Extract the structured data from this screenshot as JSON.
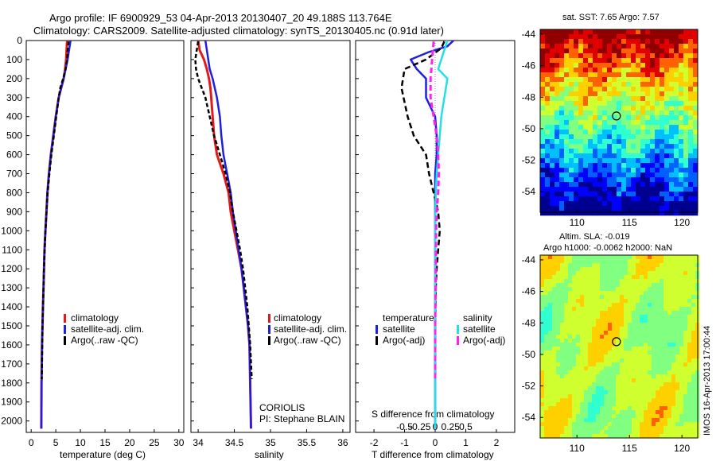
{
  "title_line1": "Argo profile: IF 6900929_53 04-Apr-2013 20130407_20 49.188S 113.764E",
  "title_line2": "Climatology: CARS2009. Satellite-adjusted climatology: synTS_20130405.nc (0.91d later)",
  "colors": {
    "climatology": "#e31a1c",
    "satellite": "#1f1fe0",
    "argo": "#000000",
    "satellite_s": "#22e0e8",
    "argo_s": "#ff22ee"
  },
  "depth_ticks": [
    "0",
    "100",
    "200",
    "300",
    "400",
    "500",
    "600",
    "700",
    "800",
    "900",
    "1000",
    "1100",
    "1200",
    "1300",
    "1400",
    "1500",
    "1600",
    "1700",
    "1800",
    "1900",
    "2000"
  ],
  "chart_data": [
    {
      "type": "line",
      "xlabel": "temperature (deg C)",
      "xlim": [
        -1,
        31
      ],
      "ylim": [
        2060,
        0
      ],
      "x_ticks": [
        "0",
        "5",
        "10",
        "15",
        "20",
        "25",
        "30"
      ],
      "legend": [
        "climatology",
        "satellite-adj. clim.",
        "Argo(..raw -QC)"
      ],
      "series": [
        {
          "name": "climatology",
          "x": [
            7.3,
            7.2,
            7.1,
            6.9,
            6.6,
            6.1,
            5.6,
            5.0,
            4.5,
            4.0,
            3.6,
            3.3,
            3.1,
            2.9,
            2.7,
            2.6,
            2.5,
            2.4,
            2.3,
            2.2,
            2.1,
            2.05
          ],
          "y": [
            0,
            50,
            100,
            150,
            200,
            250,
            300,
            400,
            500,
            600,
            700,
            800,
            900,
            1000,
            1100,
            1200,
            1300,
            1400,
            1500,
            1600,
            1800,
            2040
          ]
        },
        {
          "name": "satellite-adj. clim.",
          "x": [
            8.0,
            7.7,
            7.4,
            7.0,
            6.6,
            6.1,
            5.6,
            5.0,
            4.5,
            4.0,
            3.6,
            3.3,
            3.1,
            2.9,
            2.7,
            2.6,
            2.5,
            2.4,
            2.3,
            2.2,
            2.1,
            2.05
          ],
          "y": [
            0,
            50,
            100,
            150,
            200,
            250,
            300,
            400,
            500,
            600,
            700,
            800,
            900,
            1000,
            1100,
            1200,
            1300,
            1400,
            1500,
            1600,
            1800,
            2040
          ]
        },
        {
          "name": "Argo(..raw -QC)",
          "x": [
            7.6,
            7.4,
            7.3,
            7.0,
            6.5,
            5.9,
            5.6,
            5.1,
            4.6,
            4.1,
            3.7,
            3.35,
            3.1,
            2.9,
            2.75,
            2.6,
            2.5,
            2.4,
            2.3,
            2.25,
            2.15
          ],
          "y": [
            5,
            50,
            100,
            150,
            200,
            250,
            300,
            400,
            500,
            600,
            700,
            800,
            900,
            1000,
            1100,
            1200,
            1300,
            1400,
            1500,
            1600,
            1780
          ]
        }
      ]
    },
    {
      "type": "line",
      "xlabel": "salinity",
      "xlim": [
        33.9,
        36.1
      ],
      "ylim": [
        2060,
        0
      ],
      "x_ticks": [
        "34",
        "34.5",
        "35",
        "35.5",
        "36"
      ],
      "legend": [
        "climatology",
        "satellite-adj. clim.",
        "Argo(..raw -QC)"
      ],
      "annotations": [
        "CORIOLIS",
        "PI: Stephane BLAIN"
      ],
      "series": [
        {
          "name": "climatology",
          "x": [
            34.0,
            34.02,
            34.08,
            34.12,
            34.15,
            34.17,
            34.18,
            34.2,
            34.22,
            34.26,
            34.35,
            34.42,
            34.45,
            34.5,
            34.55,
            34.6,
            34.63,
            34.66,
            34.69,
            34.71,
            34.72,
            34.73
          ],
          "y": [
            0,
            50,
            100,
            150,
            200,
            250,
            300,
            400,
            500,
            600,
            700,
            800,
            900,
            1000,
            1100,
            1200,
            1300,
            1400,
            1500,
            1600,
            1800,
            2040
          ]
        },
        {
          "name": "satellite-adj. clim.",
          "x": [
            34.1,
            34.12,
            34.14,
            34.16,
            34.2,
            34.23,
            34.26,
            34.3,
            34.32,
            34.35,
            34.4,
            34.45,
            34.48,
            34.52,
            34.56,
            34.6,
            34.63,
            34.66,
            34.69,
            34.71,
            34.72,
            34.73
          ],
          "y": [
            0,
            50,
            100,
            150,
            200,
            250,
            300,
            400,
            500,
            600,
            700,
            800,
            900,
            1000,
            1100,
            1200,
            1300,
            1400,
            1500,
            1600,
            1800,
            2040
          ]
        },
        {
          "name": "Argo(..raw -QC)",
          "x": [
            34.0,
            33.98,
            33.96,
            33.97,
            34.0,
            34.05,
            34.1,
            34.16,
            34.22,
            34.3,
            34.38,
            34.44,
            34.48,
            34.53,
            34.58,
            34.62,
            34.65,
            34.68,
            34.7,
            34.72,
            34.74
          ],
          "y": [
            5,
            50,
            100,
            150,
            200,
            250,
            300,
            400,
            500,
            600,
            700,
            800,
            900,
            1000,
            1100,
            1200,
            1300,
            1400,
            1500,
            1600,
            1780
          ]
        }
      ]
    },
    {
      "type": "line",
      "xlabel": "T difference from climatology",
      "xlabel_top": "S difference from climatology",
      "xlim": [
        -2.6,
        2.6
      ],
      "ylim": [
        2060,
        0
      ],
      "x_ticks": [
        "-2",
        "-1",
        "0",
        "1",
        "2"
      ],
      "x_ticks_top": [
        "-0.5",
        "-0.25",
        "0",
        "0.25",
        "0.5"
      ],
      "legend_headers": [
        "temperature",
        "salinity"
      ],
      "legend": [
        "satellite",
        "Argo(-adj)",
        "satellite",
        "Argo(-adj)"
      ],
      "series": [
        {
          "name": "temperature satellite",
          "x": [
            0.6,
            0.4,
            -0.2,
            -0.8,
            -0.6,
            -0.3,
            -0.3,
            0.0,
            0.05,
            0.05,
            0.0,
            0.0,
            0.0,
            0.0,
            0.0,
            0.0,
            0.0,
            0.0,
            0.0
          ],
          "y": [
            0,
            30,
            60,
            100,
            150,
            200,
            300,
            400,
            500,
            600,
            700,
            900,
            1100,
            1300,
            1500,
            1600,
            1800,
            1900,
            2040
          ]
        },
        {
          "name": "temperature Argo(-adj)",
          "x": [
            0.3,
            0.2,
            -0.3,
            -1.0,
            -1.1,
            -0.9,
            -0.7,
            -0.3,
            -0.2,
            -0.05,
            0.1,
            0.15,
            0.1,
            0.05,
            0.02,
            0.0,
            0.0,
            0.0
          ],
          "y": [
            5,
            40,
            100,
            150,
            250,
            400,
            500,
            600,
            700,
            800,
            900,
            1000,
            1100,
            1200,
            1300,
            1500,
            1700,
            1780
          ]
        },
        {
          "name": "salinity satellite",
          "x": [
            0.4,
            0.3,
            0.1,
            0.4,
            0.3,
            0.2,
            0.15,
            0.1,
            0.05,
            0.02,
            0.0,
            0.0,
            0.0,
            0.0,
            0.0,
            0.0
          ],
          "y": [
            0,
            50,
            150,
            200,
            300,
            400,
            500,
            600,
            700,
            800,
            1000,
            1300,
            1500,
            1700,
            1900,
            2040
          ]
        },
        {
          "name": "salinity Argo(-adj)",
          "x": [
            -0.05,
            -0.1,
            -0.15,
            -0.15,
            -0.05,
            0.05,
            0.1,
            0.12,
            0.1,
            0.05,
            0.03,
            0.02,
            0.0,
            0.0
          ],
          "y": [
            5,
            100,
            200,
            300,
            400,
            500,
            600,
            700,
            800,
            900,
            1000,
            1200,
            1500,
            1780
          ]
        }
      ]
    },
    {
      "type": "heatmap",
      "title": "sat. SST: 7.65 Argo: 7.57",
      "x_ticks": [
        "110",
        "115",
        "120"
      ],
      "y_ticks": [
        "-44",
        "-46",
        "-48",
        "-50",
        "-52",
        "-54"
      ],
      "xlim": [
        106.5,
        121.5
      ],
      "ylim": [
        -55.3,
        -43.7
      ],
      "marker": {
        "lon": 113.76,
        "lat": -49.19
      }
    },
    {
      "type": "heatmap",
      "title_line1": "Altim. SLA: -0.019",
      "title_line2": "Argo h1000: -0.0062 h2000: NaN",
      "x_ticks": [
        "110",
        "115",
        "120"
      ],
      "y_ticks": [
        "-44",
        "-46",
        "-48",
        "-50",
        "-52",
        "-54"
      ],
      "xlim": [
        106.5,
        121.5
      ],
      "ylim": [
        -55.3,
        -43.7
      ],
      "marker": {
        "lon": 113.76,
        "lat": -49.19
      },
      "side_label": "IMOS 16-Apr-2013 17:00:44"
    }
  ]
}
